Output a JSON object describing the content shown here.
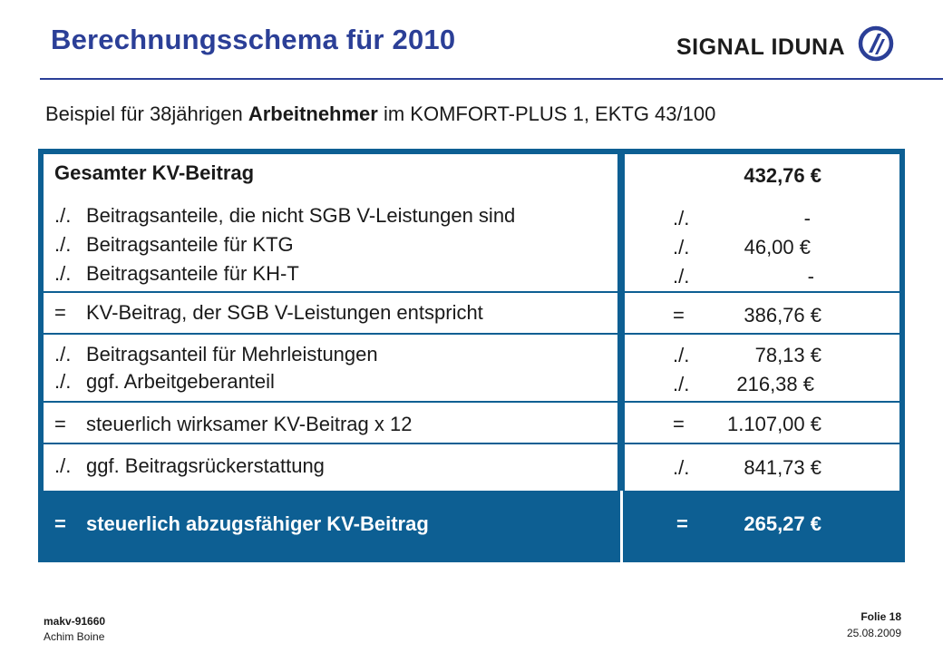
{
  "header": {
    "title": "Berechnungsschema für 2010",
    "logo_text": "SIGNAL IDUNA",
    "logo_icon": "signal-iduna-logo-icon",
    "accent_color": "#2b3f97"
  },
  "subtitle": {
    "prefix": "Beispiel für 38jährigen ",
    "emphasis": "Arbeitnehmer",
    "suffix": " im KOMFORT-PLUS 1, EKTG 43/100"
  },
  "table": {
    "frame_color": "#0d5f93",
    "rows": [
      {
        "operator": "",
        "label": "Gesamter KV-Beitrag",
        "value_operator": "",
        "value": "432,76 €"
      },
      {
        "operator": "./.",
        "label": "Beitragsanteile, die nicht SGB V-Leistungen sind",
        "value_operator": "./.",
        "value": "-"
      },
      {
        "operator": "./.",
        "label": "Beitragsanteile für KTG",
        "value_operator": "./.",
        "value": "46,00 €"
      },
      {
        "operator": "./.",
        "label": "Beitragsanteile für KH-T",
        "value_operator": "./.",
        "value": "-"
      },
      {
        "operator": "=",
        "label": "KV-Beitrag, der SGB V-Leistungen entspricht",
        "value_operator": "=",
        "value": "386,76 €"
      },
      {
        "operator": "./.",
        "label": "Beitragsanteil für Mehrleistungen",
        "value_operator": "./.",
        "value": "78,13 €"
      },
      {
        "operator": "./.",
        "label": "ggf. Arbeitgeberanteil",
        "value_operator": "./.",
        "value": "216,38 €"
      },
      {
        "operator": "=",
        "label": "steuerlich wirksamer KV-Beitrag x 12",
        "value_operator": "=",
        "value": "1.107,00 €"
      },
      {
        "operator": "./.",
        "label": "ggf. Beitragsrückerstattung",
        "value_operator": "./.",
        "value": "841,73 €"
      },
      {
        "operator": "=",
        "label": "steuerlich abzugsfähiger KV-Beitrag",
        "value_operator": "=",
        "value": "265,27 €"
      }
    ]
  },
  "footer": {
    "doc_id": "makv-91660",
    "author": "Achim Boine",
    "slide": "Folie 18",
    "date": "25.08.2009"
  }
}
